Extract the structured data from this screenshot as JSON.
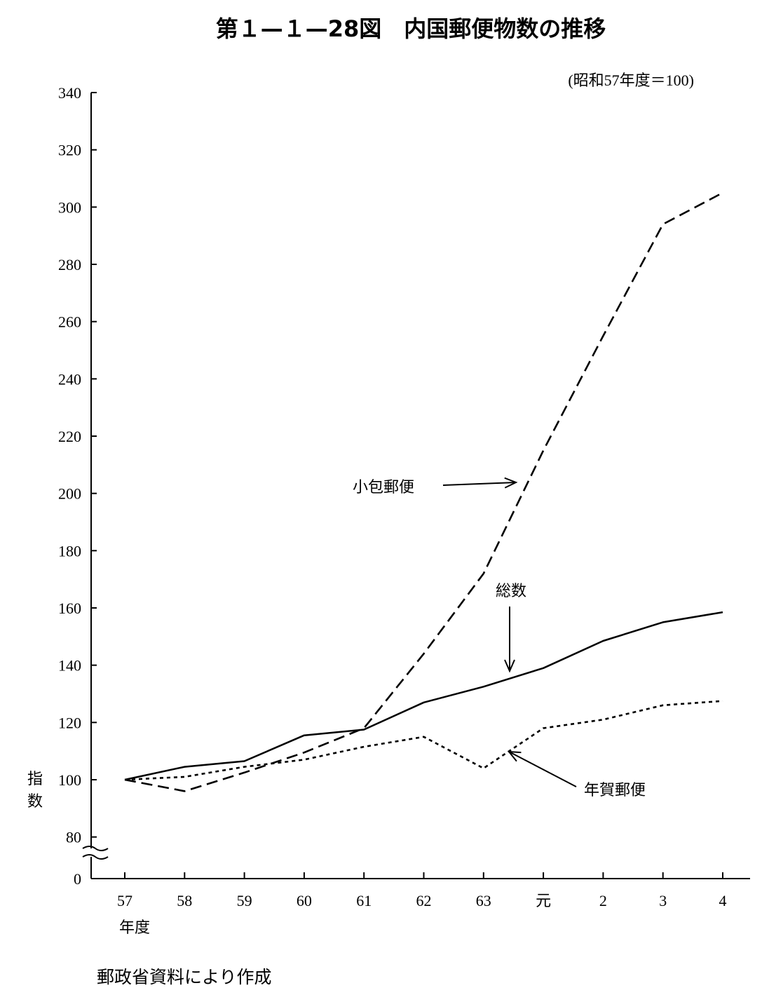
{
  "chart_data": {
    "type": "line",
    "title": "第１—１—28図　内国郵便物数の推移",
    "subtitle": "(昭和57年度＝100)",
    "ylabel": "指数",
    "xlabel": "年度",
    "source": "郵政省資料により作成",
    "x_ticks": [
      "57",
      "58",
      "59",
      "60",
      "61",
      "62",
      "63",
      "元",
      "2",
      "3",
      "4"
    ],
    "y_ticks": [
      0,
      80,
      100,
      120,
      140,
      160,
      180,
      200,
      220,
      240,
      260,
      280,
      300,
      320,
      340
    ],
    "ylim": [
      80,
      340
    ],
    "axis_break": true,
    "grid": false,
    "series": [
      {
        "name": "総数",
        "style": "solid",
        "values": [
          100,
          104.5,
          106.5,
          115.5,
          117.5,
          127,
          132.5,
          139,
          148.5,
          155,
          158.5
        ]
      },
      {
        "name": "小包郵便",
        "style": "dashed",
        "values": [
          100,
          96,
          102.5,
          109.5,
          118,
          144,
          172,
          215,
          255,
          294,
          305
        ]
      },
      {
        "name": "年賀郵便",
        "style": "dotted",
        "values": [
          100,
          101,
          104.5,
          107,
          111.5,
          115,
          104,
          118,
          121,
          126,
          127.5
        ]
      }
    ],
    "annotations": [
      {
        "series": "小包郵便",
        "text": "小包郵便",
        "at_x_index": 6.6,
        "at_value": 205
      },
      {
        "series": "総数",
        "text": "総数",
        "at_x_index": 6.5,
        "at_value": 137
      },
      {
        "series": "年賀郵便",
        "text": "年賀郵便",
        "at_x_index": 6.5,
        "at_value": 110
      }
    ]
  }
}
